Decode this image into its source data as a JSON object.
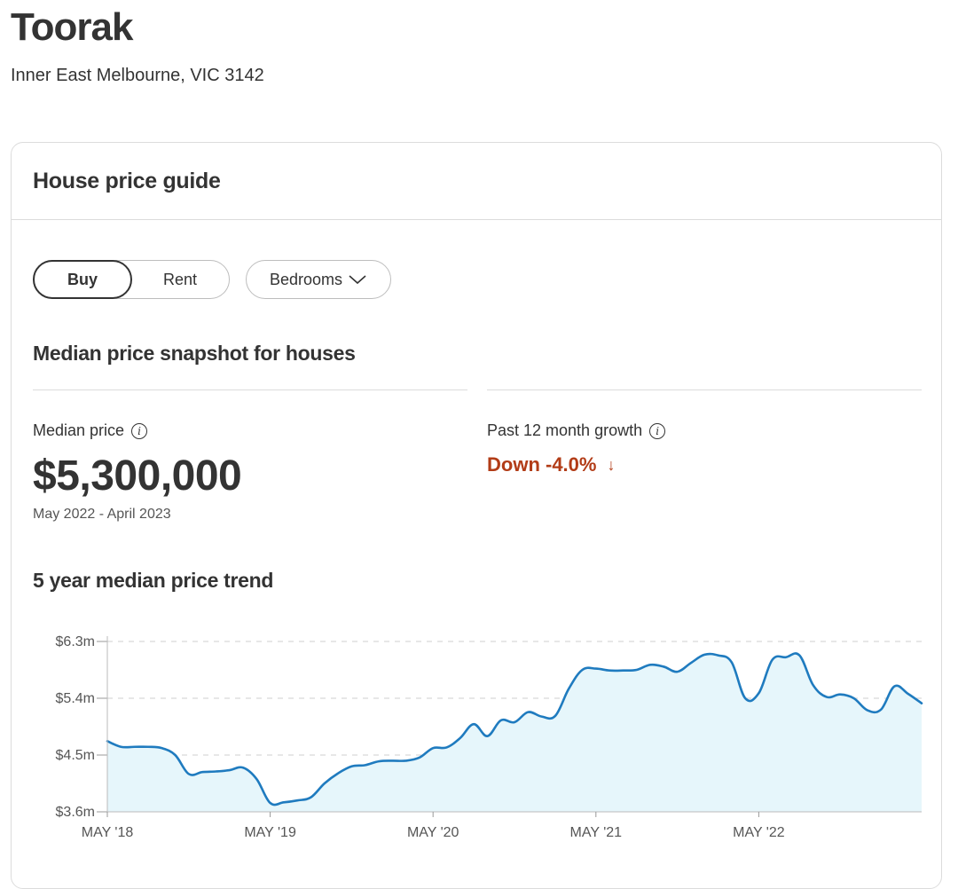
{
  "header": {
    "title": "Toorak",
    "subtitle": "Inner East Melbourne, VIC 3142"
  },
  "card": {
    "title": "House price guide",
    "toggle": {
      "buy": "Buy",
      "rent": "Rent",
      "selected": "Buy"
    },
    "bedrooms_label": "Bedrooms",
    "snapshot_title": "Median price snapshot for houses",
    "median": {
      "label": "Median price",
      "value": "$5,300,000",
      "period": "May 2022 - April 2023"
    },
    "growth": {
      "label": "Past 12 month growth",
      "value": "Down -4.0%",
      "color": "#b23c17"
    },
    "trend_title": "5 year median price trend"
  },
  "chart_data": {
    "type": "area",
    "y_tick_labels": [
      "$6.3m",
      "$5.4m",
      "$4.5m",
      "$3.6m"
    ],
    "y_ticks": [
      6.3,
      5.4,
      4.5,
      3.6
    ],
    "ylim": [
      3.6,
      6.3
    ],
    "x_tick_labels": [
      "MAY '18",
      "MAY '19",
      "MAY '20",
      "MAY '21",
      "MAY '22"
    ],
    "grid": true,
    "line_color": "#1f7bbf",
    "fill_color": "#e6f6fb",
    "points": [
      [
        0,
        4.72
      ],
      [
        1,
        4.63
      ],
      [
        2,
        4.63
      ],
      [
        3,
        4.63
      ],
      [
        4,
        4.61
      ],
      [
        5,
        4.5
      ],
      [
        6,
        4.2
      ],
      [
        7,
        4.23
      ],
      [
        8,
        4.24
      ],
      [
        9,
        4.26
      ],
      [
        10,
        4.3
      ],
      [
        11,
        4.12
      ],
      [
        12,
        3.74
      ],
      [
        13,
        3.75
      ],
      [
        14,
        3.78
      ],
      [
        15,
        3.83
      ],
      [
        16,
        4.05
      ],
      [
        17,
        4.21
      ],
      [
        18,
        4.32
      ],
      [
        19,
        4.34
      ],
      [
        20,
        4.4
      ],
      [
        21,
        4.41
      ],
      [
        22,
        4.41
      ],
      [
        23,
        4.46
      ],
      [
        24,
        4.61
      ],
      [
        25,
        4.62
      ],
      [
        26,
        4.77
      ],
      [
        27,
        4.99
      ],
      [
        28,
        4.8
      ],
      [
        29,
        5.05
      ],
      [
        30,
        5.02
      ],
      [
        31,
        5.18
      ],
      [
        32,
        5.11
      ],
      [
        33,
        5.12
      ],
      [
        34,
        5.55
      ],
      [
        35,
        5.85
      ],
      [
        36,
        5.87
      ],
      [
        37,
        5.84
      ],
      [
        38,
        5.84
      ],
      [
        39,
        5.85
      ],
      [
        40,
        5.93
      ],
      [
        41,
        5.9
      ],
      [
        42,
        5.82
      ],
      [
        43,
        5.96
      ],
      [
        44,
        6.09
      ],
      [
        45,
        6.08
      ],
      [
        46,
        5.97
      ],
      [
        47,
        5.4
      ],
      [
        48,
        5.48
      ],
      [
        49,
        6.01
      ],
      [
        50,
        6.05
      ],
      [
        51,
        6.08
      ],
      [
        52,
        5.61
      ],
      [
        53,
        5.42
      ],
      [
        54,
        5.46
      ],
      [
        55,
        5.4
      ],
      [
        56,
        5.21
      ],
      [
        57,
        5.22
      ],
      [
        58,
        5.59
      ],
      [
        59,
        5.47
      ],
      [
        60,
        5.32
      ]
    ]
  }
}
